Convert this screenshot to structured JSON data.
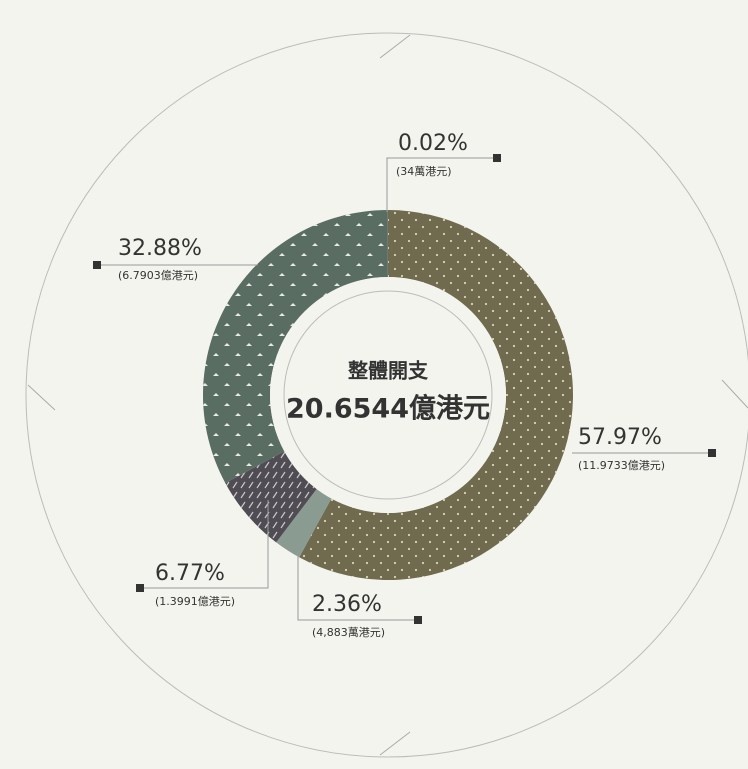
{
  "chart_data": {
    "type": "pie",
    "title": "整體開支",
    "subtitle": "20.6544億港元",
    "values": [
      57.97,
      2.36,
      6.77,
      32.88,
      0.02
    ],
    "value_labels": [
      "57.97%",
      "2.36%",
      "6.77%",
      "32.88%",
      "0.02%"
    ],
    "amount_labels": [
      "(11.9733億港元)",
      "(4,883萬港元)",
      "(1.3991億港元)",
      "(6.7903億港元)",
      "(34萬港元)"
    ],
    "colors": [
      "#706b4e",
      "#8a9b92",
      "#4f4d53",
      "#5a6d62",
      "#5a6d62"
    ]
  }
}
